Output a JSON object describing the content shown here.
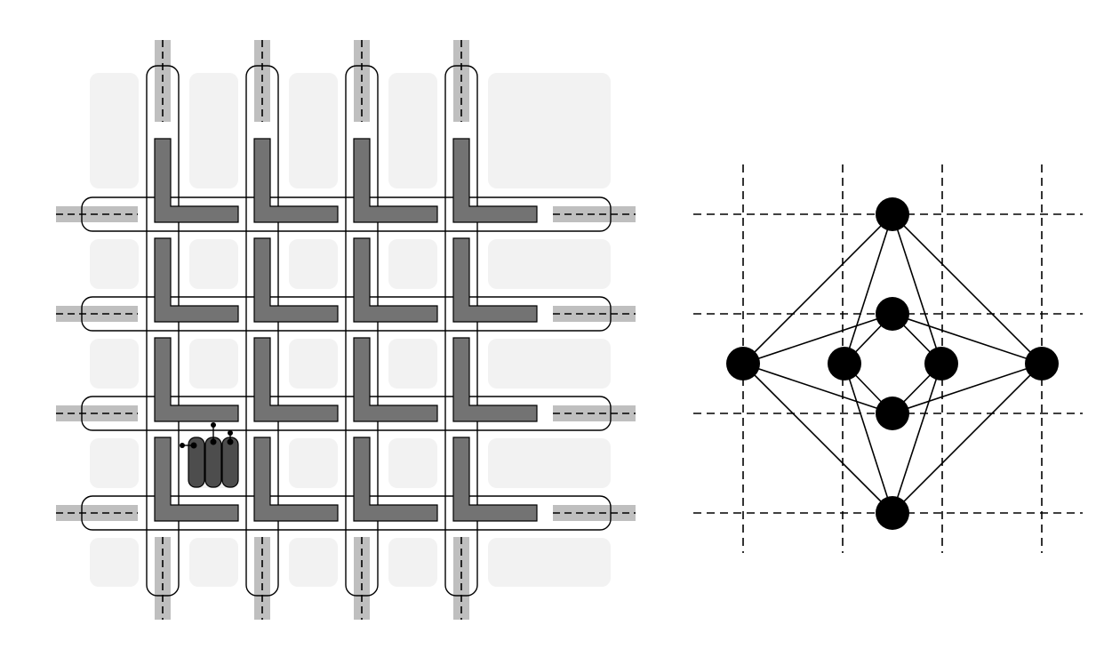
{
  "colors": {
    "background": "#ffffff",
    "cell": "#f2f2f2",
    "bar": "#bfbfbf",
    "l_shape": "#737373",
    "component": "#4d4d4d",
    "stroke": "#000000",
    "node": "#000000"
  },
  "left_diagram": {
    "grid_columns": 4,
    "grid_rows": 4,
    "cell_columns": 5,
    "cell_rows": 6,
    "component_unit_count": 3,
    "component_connector_count": 3
  },
  "right_diagram": {
    "nodes": [
      {
        "id": "top"
      },
      {
        "id": "inner-top"
      },
      {
        "id": "left"
      },
      {
        "id": "inner-left"
      },
      {
        "id": "inner-right"
      },
      {
        "id": "right"
      },
      {
        "id": "inner-bottom"
      },
      {
        "id": "bottom"
      }
    ],
    "edges": [
      [
        "top",
        "left"
      ],
      [
        "top",
        "right"
      ],
      [
        "top",
        "inner-left"
      ],
      [
        "top",
        "inner-right"
      ],
      [
        "bottom",
        "left"
      ],
      [
        "bottom",
        "right"
      ],
      [
        "bottom",
        "inner-left"
      ],
      [
        "bottom",
        "inner-right"
      ],
      [
        "left",
        "inner-top"
      ],
      [
        "left",
        "inner-bottom"
      ],
      [
        "right",
        "inner-top"
      ],
      [
        "right",
        "inner-bottom"
      ],
      [
        "inner-top",
        "inner-left"
      ],
      [
        "inner-top",
        "inner-right"
      ],
      [
        "inner-bottom",
        "inner-left"
      ],
      [
        "inner-bottom",
        "inner-right"
      ]
    ]
  }
}
